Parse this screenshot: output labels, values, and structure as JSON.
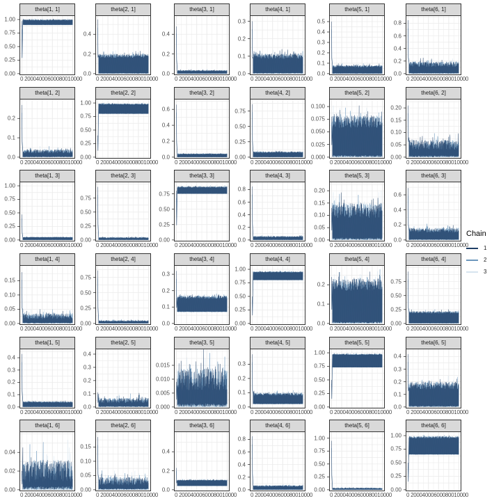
{
  "chart_data": {
    "type": "line",
    "title": "",
    "xlabel": "",
    "ylabel": "",
    "facet_layout": {
      "rows": 6,
      "cols": 6
    },
    "x_ticks": [
      "0",
      "2000",
      "4000",
      "6000",
      "8000",
      "10000"
    ],
    "x_range": [
      0,
      10000
    ],
    "x_tick_label_rendered": "0 20004000600080010000",
    "grid": true,
    "legend": {
      "title": "Chain",
      "position": "right",
      "entries": [
        {
          "label": "1",
          "color": "#1f3f66"
        },
        {
          "label": "2",
          "color": "#6c97bd"
        },
        {
          "label": "3",
          "color": "#d6e4ef"
        }
      ]
    },
    "panels": [
      {
        "label": "theta[1, 1]",
        "row": 0,
        "col": 0,
        "left": 28,
        "yticks": [
          "0.00",
          "0.25",
          "0.50",
          "0.75",
          "1.00"
        ],
        "ymax": 1.0,
        "spike": 0.97,
        "band": [
          0.9,
          0.99
        ],
        "noise": 0.01
      },
      {
        "label": "theta[2, 1]",
        "row": 0,
        "col": 1,
        "left": 137,
        "yticks": [
          "0.0",
          "0.2",
          "0.4"
        ],
        "ymax": 0.55,
        "spike": 0.55,
        "band": [
          0.0,
          0.18
        ],
        "noise": 0.02
      },
      {
        "label": "theta[3, 1]",
        "row": 0,
        "col": 2,
        "left": 250,
        "yticks": [
          "0.0",
          "0.2",
          "0.4"
        ],
        "ymax": 0.55,
        "spike": 0.48,
        "band": [
          0.0,
          0.03
        ],
        "noise": 0.005
      },
      {
        "label": "theta[4, 1]",
        "row": 0,
        "col": 3,
        "left": 359,
        "yticks": [
          "0.0",
          "0.1",
          "0.2",
          "0.3"
        ],
        "ymax": 0.31,
        "spike": 0.3,
        "band": [
          0.0,
          0.1
        ],
        "noise": 0.015
      },
      {
        "label": "theta[5, 1]",
        "row": 0,
        "col": 4,
        "left": 473,
        "yticks": [
          "0.0",
          "0.1",
          "0.2",
          "0.3",
          "0.4",
          "0.5"
        ],
        "ymax": 0.52,
        "spike": 0.5,
        "band": [
          0.0,
          0.07
        ],
        "noise": 0.01
      },
      {
        "label": "theta[6, 1]",
        "row": 0,
        "col": 5,
        "left": 583,
        "yticks": [
          "0.0",
          "0.2",
          "0.4",
          "0.6",
          "0.8"
        ],
        "ymax": 0.86,
        "spike": 0.85,
        "band": [
          0.0,
          0.15
        ],
        "noise": 0.04
      },
      {
        "label": "theta[1, 2]",
        "row": 1,
        "col": 0,
        "left": 28,
        "yticks": [
          "0.0",
          "0.1",
          "0.2"
        ],
        "ymax": 0.28,
        "spike": 0.27,
        "band": [
          0.0,
          0.03
        ],
        "noise": 0.01
      },
      {
        "label": "theta[2, 2]",
        "row": 1,
        "col": 1,
        "left": 137,
        "yticks": [
          "0.00",
          "0.25",
          "0.50",
          "0.75",
          "1.00"
        ],
        "ymax": 1.0,
        "spike": 0.4,
        "band": [
          0.8,
          0.98
        ],
        "noise": 0.01
      },
      {
        "label": "theta[3, 2]",
        "row": 1,
        "col": 2,
        "left": 250,
        "yticks": [
          "0.0",
          "0.2",
          "0.4",
          "0.6"
        ],
        "ymax": 0.68,
        "spike": 0.66,
        "band": [
          0.0,
          0.04
        ],
        "noise": 0.005
      },
      {
        "label": "theta[4, 2]",
        "row": 1,
        "col": 3,
        "left": 359,
        "yticks": [
          "0.00",
          "0.25",
          "0.50",
          "0.75"
        ],
        "ymax": 0.88,
        "spike": 0.86,
        "band": [
          0.0,
          0.08
        ],
        "noise": 0.01
      },
      {
        "label": "theta[5, 2]",
        "row": 1,
        "col": 4,
        "left": 473,
        "yticks": [
          "0.000",
          "0.025",
          "0.050",
          "0.075",
          "0.100"
        ],
        "ymax": 0.107,
        "spike": 0.08,
        "band": [
          0.0,
          0.07
        ],
        "noise": 0.012
      },
      {
        "label": "theta[6, 2]",
        "row": 1,
        "col": 5,
        "left": 583,
        "yticks": [
          "0.00",
          "0.05",
          "0.10",
          "0.15",
          "0.20"
        ],
        "ymax": 0.22,
        "spike": 0.21,
        "band": [
          0.0,
          0.05
        ],
        "noise": 0.02
      },
      {
        "label": "theta[1, 3]",
        "row": 2,
        "col": 0,
        "left": 28,
        "yticks": [
          "0.00",
          "0.25",
          "0.50",
          "0.75",
          "1.00"
        ],
        "ymax": 1.0,
        "spike": 0.47,
        "band": [
          0.0,
          0.05
        ],
        "noise": 0.005
      },
      {
        "label": "theta[2, 3]",
        "row": 2,
        "col": 1,
        "left": 137,
        "yticks": [
          "0.00",
          "0.25",
          "0.50",
          "0.75"
        ],
        "ymax": 0.97,
        "spike": 0.95,
        "band": [
          0.0,
          0.04
        ],
        "noise": 0.01
      },
      {
        "label": "theta[3, 3]",
        "row": 2,
        "col": 2,
        "left": 250,
        "yticks": [
          "0.00",
          "0.25",
          "0.50",
          "0.75"
        ],
        "ymax": 0.88,
        "spike": 0.8,
        "band": [
          0.75,
          0.86
        ],
        "noise": 0.01
      },
      {
        "label": "theta[4, 3]",
        "row": 2,
        "col": 3,
        "left": 359,
        "yticks": [
          "0.0",
          "0.2",
          "0.4",
          "0.6",
          "0.8"
        ],
        "ymax": 0.86,
        "spike": 0.85,
        "band": [
          0.0,
          0.05
        ],
        "noise": 0.01
      },
      {
        "label": "theta[5, 3]",
        "row": 2,
        "col": 4,
        "left": 473,
        "yticks": [
          "0.00",
          "0.05",
          "0.10",
          "0.15",
          "0.20"
        ],
        "ymax": 0.22,
        "spike": 0.13,
        "band": [
          0.0,
          0.12
        ],
        "noise": 0.03
      },
      {
        "label": "theta[6, 3]",
        "row": 2,
        "col": 5,
        "left": 583,
        "yticks": [
          "0.0",
          "0.2",
          "0.4",
          "0.6"
        ],
        "ymax": 0.72,
        "spike": 0.69,
        "band": [
          0.0,
          0.13
        ],
        "noise": 0.03
      },
      {
        "label": "theta[1, 4]",
        "row": 3,
        "col": 0,
        "left": 28,
        "yticks": [
          "0.00",
          "0.05",
          "0.10",
          "0.15"
        ],
        "ymax": 0.19,
        "spike": 0.18,
        "band": [
          0.0,
          0.025
        ],
        "noise": 0.01
      },
      {
        "label": "theta[2, 4]",
        "row": 3,
        "col": 1,
        "left": 137,
        "yticks": [
          "0.00",
          "0.25",
          "0.50",
          "0.75"
        ],
        "ymax": 0.88,
        "spike": 0.86,
        "band": [
          0.0,
          0.04
        ],
        "noise": 0.01
      },
      {
        "label": "theta[3, 4]",
        "row": 3,
        "col": 2,
        "left": 250,
        "yticks": [
          "0.0",
          "0.1",
          "0.2",
          "0.3"
        ],
        "ymax": 0.33,
        "spike": 0.32,
        "band": [
          0.07,
          0.16
        ],
        "noise": 0.01
      },
      {
        "label": "theta[4, 4]",
        "row": 3,
        "col": 3,
        "left": 359,
        "yticks": [
          "0.00",
          "0.25",
          "0.50",
          "0.75",
          "1.00"
        ],
        "ymax": 1.0,
        "spike": 0.5,
        "band": [
          0.8,
          0.95
        ],
        "noise": 0.01
      },
      {
        "label": "theta[5, 4]",
        "row": 3,
        "col": 4,
        "left": 473,
        "yticks": [
          "0.0",
          "0.1",
          "0.2"
        ],
        "ymax": 0.28,
        "spike": 0.24,
        "band": [
          0.0,
          0.2
        ],
        "noise": 0.03
      },
      {
        "label": "theta[6, 4]",
        "row": 3,
        "col": 5,
        "left": 583,
        "yticks": [
          "0.00",
          "0.25",
          "0.50",
          "0.75"
        ],
        "ymax": 0.97,
        "spike": 0.93,
        "band": [
          0.0,
          0.2
        ],
        "noise": 0.02
      },
      {
        "label": "theta[1, 5]",
        "row": 4,
        "col": 0,
        "left": 28,
        "yticks": [
          "0.0",
          "0.1",
          "0.2",
          "0.3",
          "0.4"
        ],
        "ymax": 0.44,
        "spike": 0.43,
        "band": [
          0.0,
          0.04
        ],
        "noise": 0.005
      },
      {
        "label": "theta[2, 5]",
        "row": 4,
        "col": 1,
        "left": 137,
        "yticks": [
          "0.0",
          "0.1",
          "0.2",
          "0.3",
          "0.4"
        ],
        "ymax": 0.41,
        "spike": 0.11,
        "band": [
          0.0,
          0.05
        ],
        "noise": 0.02
      },
      {
        "label": "theta[3, 5]",
        "row": 4,
        "col": 2,
        "left": 250,
        "yticks": [
          "0.000",
          "0.005",
          "0.010",
          "0.015"
        ],
        "ymax": 0.0195,
        "spike": 0.009,
        "band": [
          0.0,
          0.01
        ],
        "noise": 0.004
      },
      {
        "label": "theta[4, 5]",
        "row": 4,
        "col": 3,
        "left": 359,
        "yticks": [
          "0.0",
          "0.1",
          "0.2",
          "0.3"
        ],
        "ymax": 0.38,
        "spike": 0.37,
        "band": [
          0.02,
          0.09
        ],
        "noise": 0.01
      },
      {
        "label": "theta[5, 5]",
        "row": 4,
        "col": 4,
        "left": 473,
        "yticks": [
          "0.00",
          "0.25",
          "0.50",
          "0.75",
          "1.00"
        ],
        "ymax": 1.0,
        "spike": 0.5,
        "band": [
          0.73,
          0.97
        ],
        "noise": 0.01
      },
      {
        "label": "theta[6, 5]",
        "row": 4,
        "col": 5,
        "left": 583,
        "yticks": [
          "0.0",
          "0.1",
          "0.2",
          "0.3",
          "0.4"
        ],
        "ymax": 0.43,
        "spike": 0.42,
        "band": [
          0.0,
          0.17
        ],
        "noise": 0.03
      },
      {
        "label": "theta[1, 6]",
        "row": 5,
        "col": 0,
        "left": 28,
        "yticks": [
          "0.00",
          "0.02",
          "0.04"
        ],
        "ymax": 0.058,
        "spike": 0.02,
        "band": [
          0.0,
          0.02
        ],
        "noise": 0.012
      },
      {
        "label": "theta[2, 6]",
        "row": 5,
        "col": 1,
        "left": 137,
        "yticks": [
          "0.00",
          "0.05",
          "0.10",
          "0.15"
        ],
        "ymax": 0.19,
        "spike": 0.185,
        "band": [
          0.0,
          0.03
        ],
        "noise": 0.015
      },
      {
        "label": "theta[3, 6]",
        "row": 5,
        "col": 2,
        "left": 250,
        "yticks": [
          "0.0",
          "0.2",
          "0.4"
        ],
        "ymax": 0.57,
        "spike": 0.23,
        "band": [
          0.04,
          0.1
        ],
        "noise": 0.005
      },
      {
        "label": "theta[4, 6]",
        "row": 5,
        "col": 3,
        "left": 359,
        "yticks": [
          "0.0",
          "0.2",
          "0.4",
          "0.6",
          "0.8"
        ],
        "ymax": 0.86,
        "spike": 0.85,
        "band": [
          0.0,
          0.06
        ],
        "noise": 0.01
      },
      {
        "label": "theta[5, 6]",
        "row": 5,
        "col": 4,
        "left": 473,
        "yticks": [
          "0.00",
          "0.25",
          "0.50",
          "0.75",
          "1.00"
        ],
        "ymax": 1.05,
        "spike": 0.95,
        "band": [
          0.0,
          0.03
        ],
        "noise": 0.01
      },
      {
        "label": "theta[6, 6]",
        "row": 5,
        "col": 5,
        "left": 583,
        "yticks": [
          "0.00",
          "0.25",
          "0.50",
          "0.75",
          "1.00"
        ],
        "ymax": 1.0,
        "spike": 0.5,
        "band": [
          0.65,
          0.97
        ],
        "noise": 0.02
      }
    ]
  }
}
